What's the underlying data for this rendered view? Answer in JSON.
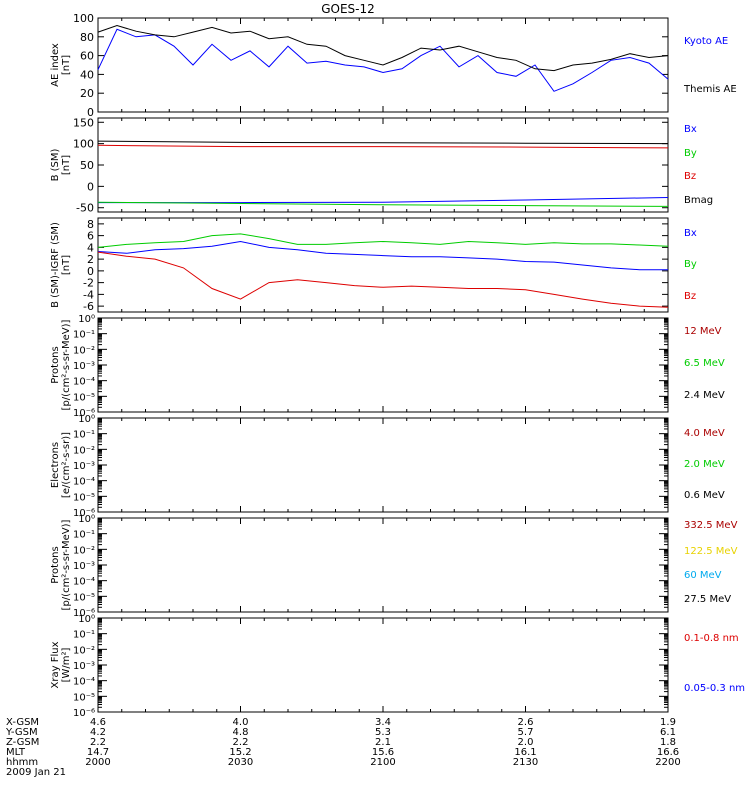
{
  "title": "GOES-12",
  "date": "2009 Jan 21",
  "colors": {
    "black": "#000000",
    "blue": "#0000ff",
    "green": "#00cc00",
    "red": "#dd0000",
    "darkred": "#aa0000",
    "yellow": "#e8d200",
    "cyan": "#00aaee"
  },
  "ephemeris": {
    "labels": [
      "X-GSM",
      "Y-GSM",
      "Z-GSM",
      "MLT",
      "hhmm"
    ],
    "columns": [
      {
        "x": "4.6",
        "y": "4.2",
        "z": "2.2",
        "mlt": "14.7",
        "hhmm": "2000"
      },
      {
        "x": "4.0",
        "y": "4.8",
        "z": "2.2",
        "mlt": "15.2",
        "hhmm": "2030"
      },
      {
        "x": "3.4",
        "y": "5.3",
        "z": "2.1",
        "mlt": "15.6",
        "hhmm": "2100"
      },
      {
        "x": "2.6",
        "y": "5.7",
        "z": "2.0",
        "mlt": "16.1",
        "hhmm": "2130"
      },
      {
        "x": "1.9",
        "y": "6.1",
        "z": "1.8",
        "mlt": "16.6",
        "hhmm": "2200"
      }
    ]
  },
  "chart_data": [
    {
      "type": "line",
      "ylabel": [
        "AE index",
        "[nT]"
      ],
      "ylim": [
        0,
        100
      ],
      "yticks": [
        "0",
        "20",
        "40",
        "60",
        "80",
        "100"
      ],
      "x": [
        0,
        4,
        8,
        12,
        16,
        20,
        24,
        28,
        32,
        36,
        40,
        44,
        48,
        52,
        56,
        60,
        64,
        68,
        72,
        76,
        80,
        84,
        88,
        92,
        96,
        100,
        104,
        108,
        112,
        116,
        120
      ],
      "series": [
        {
          "name": "Kyoto AE",
          "color": "blue",
          "values": [
            45,
            88,
            80,
            82,
            70,
            50,
            72,
            55,
            65,
            48,
            70,
            52,
            54,
            50,
            48,
            42,
            46,
            60,
            70,
            48,
            60,
            42,
            38,
            50,
            22,
            30,
            42,
            55,
            58,
            52,
            35
          ]
        },
        {
          "name": "Themis AE",
          "color": "black",
          "values": [
            85,
            92,
            86,
            82,
            80,
            85,
            90,
            84,
            86,
            78,
            80,
            72,
            70,
            60,
            55,
            50,
            58,
            68,
            66,
            70,
            64,
            58,
            55,
            46,
            44,
            50,
            52,
            56,
            62,
            58,
            60
          ]
        }
      ]
    },
    {
      "type": "line",
      "ylabel": [
        "B (SM)",
        "[nT]"
      ],
      "ylim": [
        -60,
        160
      ],
      "yticks": [
        "-50",
        "0",
        "50",
        "100",
        "150"
      ],
      "x": [
        0,
        30,
        60,
        90,
        120
      ],
      "series": [
        {
          "name": "Bx",
          "color": "blue",
          "values": [
            -38,
            -38,
            -37,
            -32,
            -26
          ]
        },
        {
          "name": "By",
          "color": "green",
          "values": [
            -37,
            -40,
            -43,
            -45,
            -47
          ]
        },
        {
          "name": "Bz",
          "color": "red",
          "values": [
            96,
            93,
            93,
            92,
            90
          ]
        },
        {
          "name": "Bmag",
          "color": "black",
          "values": [
            106,
            103,
            102,
            101,
            100
          ]
        }
      ]
    },
    {
      "type": "line",
      "ylabel": [
        "B (SM)-IGRF (SM)",
        "[nT]"
      ],
      "ylim": [
        -7,
        9
      ],
      "yticks": [
        "-6",
        "-4",
        "-2",
        "0",
        "2",
        "4",
        "6",
        "8"
      ],
      "x": [
        0,
        6,
        12,
        18,
        24,
        30,
        36,
        42,
        48,
        54,
        60,
        66,
        72,
        78,
        84,
        90,
        96,
        102,
        108,
        114,
        120
      ],
      "series": [
        {
          "name": "Bx",
          "color": "blue",
          "values": [
            3.3,
            3.0,
            3.6,
            3.8,
            4.2,
            5.0,
            4.0,
            3.6,
            3.0,
            2.8,
            2.6,
            2.4,
            2.4,
            2.2,
            2.0,
            1.6,
            1.5,
            1.0,
            0.5,
            0.2,
            0.2
          ]
        },
        {
          "name": "By",
          "color": "green",
          "values": [
            4.0,
            4.5,
            4.8,
            5.0,
            6.0,
            6.3,
            5.5,
            4.5,
            4.5,
            4.8,
            5.0,
            4.8,
            4.5,
            5.0,
            4.8,
            4.5,
            4.8,
            4.6,
            4.6,
            4.4,
            4.2
          ]
        },
        {
          "name": "Bz",
          "color": "red",
          "values": [
            3.2,
            2.5,
            2.0,
            0.5,
            -3.0,
            -4.8,
            -2.0,
            -1.5,
            -2.0,
            -2.5,
            -2.8,
            -2.6,
            -2.8,
            -3.0,
            -3.0,
            -3.2,
            -4.0,
            -4.8,
            -5.5,
            -6.0,
            -6.2
          ]
        }
      ]
    },
    {
      "type": "line",
      "ylabel": [
        "Protons",
        "[p/(cm²-s-sr-MeV)]"
      ],
      "log": true,
      "ylim": [
        -6,
        0
      ],
      "legend": [
        {
          "name": "12 MeV",
          "color": "darkred"
        },
        {
          "name": "6.5 MeV",
          "color": "green"
        },
        {
          "name": "2.4 MeV",
          "color": "black"
        }
      ]
    },
    {
      "type": "line",
      "ylabel": [
        "Electrons",
        "[e/(cm²-s-sr)]"
      ],
      "log": true,
      "ylim": [
        -6,
        0
      ],
      "legend": [
        {
          "name": "4.0 MeV",
          "color": "darkred"
        },
        {
          "name": "2.0 MeV",
          "color": "green"
        },
        {
          "name": "0.6 MeV",
          "color": "black"
        }
      ]
    },
    {
      "type": "line",
      "ylabel": [
        "Protons",
        "[p/(cm²-s-sr-MeV)]"
      ],
      "log": true,
      "ylim": [
        -6,
        0
      ],
      "legend": [
        {
          "name": "332.5 MeV",
          "color": "darkred"
        },
        {
          "name": "122.5 MeV",
          "color": "yellow"
        },
        {
          "name": "60 MeV",
          "color": "cyan"
        },
        {
          "name": "27.5 MeV",
          "color": "black"
        }
      ]
    },
    {
      "type": "line",
      "ylabel": [
        "Xray  Flux",
        "[W/m²]"
      ],
      "log": true,
      "ylim": [
        -6,
        0
      ],
      "legend": [
        {
          "name": "0.1-0.8 nm",
          "color": "red"
        },
        {
          "name": "0.05-0.3 nm",
          "color": "blue"
        }
      ]
    }
  ]
}
